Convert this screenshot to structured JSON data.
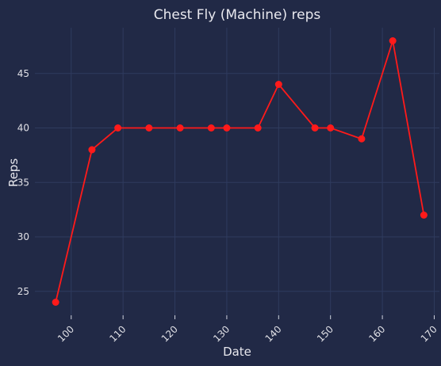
{
  "chart_data": {
    "type": "line",
    "title": "Chest Fly (Machine) reps",
    "xlabel": "Date",
    "ylabel": "Reps",
    "x_ticks": [
      "100",
      "110",
      "120",
      "130",
      "140",
      "150",
      "160",
      "170"
    ],
    "y_ticks": [
      "25",
      "30",
      "35",
      "40",
      "45"
    ],
    "xlim": [
      93,
      171
    ],
    "ylim": [
      22.8,
      49.2
    ],
    "grid": true,
    "series": [
      {
        "color": "#ff1a1a",
        "points": [
          [
            97,
            24
          ],
          [
            104,
            38
          ],
          [
            109,
            40
          ],
          [
            115,
            40
          ],
          [
            121,
            40
          ],
          [
            127,
            40
          ],
          [
            130,
            40
          ],
          [
            136,
            40
          ],
          [
            140,
            44
          ],
          [
            147,
            40
          ],
          [
            150,
            40
          ],
          [
            156,
            39
          ],
          [
            162,
            48
          ],
          [
            168,
            32
          ]
        ]
      }
    ]
  }
}
